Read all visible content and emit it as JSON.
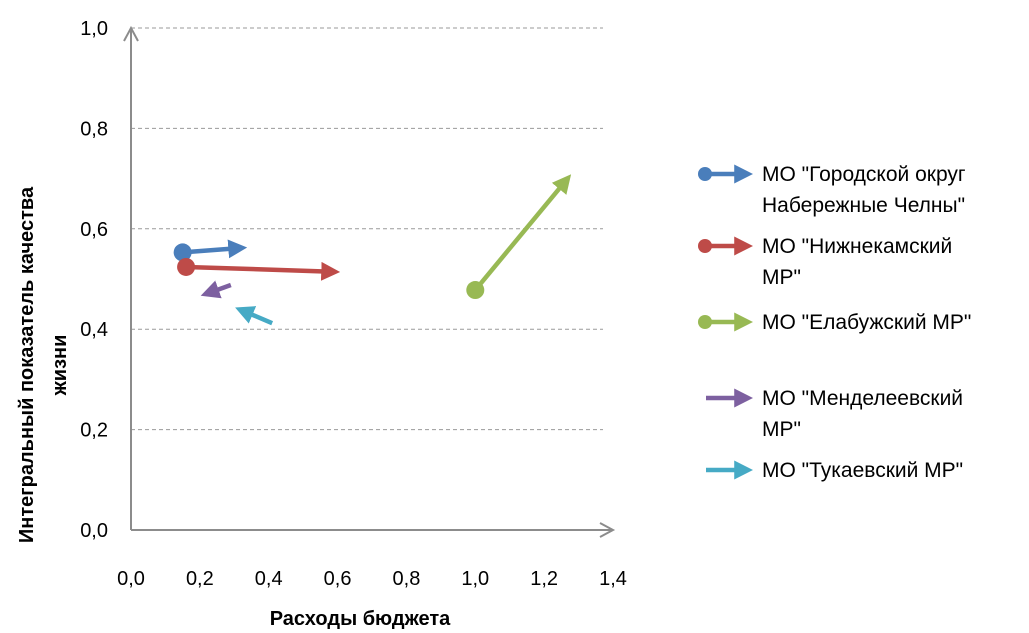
{
  "chart_data": {
    "type": "scatter",
    "xlabel": "Расходы бюджета",
    "ylabel_lines": [
      "Интегральный показатель качества",
      "жизни"
    ],
    "xlim": [
      0,
      1.4
    ],
    "ylim": [
      0,
      1.0
    ],
    "x_ticks": [
      "0,0",
      "0,2",
      "0,4",
      "0,6",
      "0,8",
      "1,0",
      "1,2",
      "1,4"
    ],
    "y_ticks": [
      "0,0",
      "0,2",
      "0,4",
      "0,6",
      "0,8",
      "1,0"
    ],
    "grid": "horizontal dashed",
    "legend_position": "right",
    "series": [
      {
        "name_lines": [
          "МО \"Городской округ",
          "Набережные Челны\""
        ],
        "color": "#4a7ebb",
        "start": [
          0.15,
          0.553
        ],
        "end": [
          0.34,
          0.563
        ],
        "marker": true
      },
      {
        "name_lines": [
          "МО \"Нижнекамский",
          "МР\""
        ],
        "color": "#be4b48",
        "start": [
          0.16,
          0.524
        ],
        "end": [
          0.61,
          0.514
        ],
        "marker": true
      },
      {
        "name_lines": [
          "МО \"Елабужский МР\""
        ],
        "color": "#98b954",
        "start": [
          1.0,
          0.478
        ],
        "end": [
          1.28,
          0.71
        ],
        "marker": true
      },
      {
        "name_lines": [
          "МО \"Менделеевский",
          "МР\""
        ],
        "color": "#7d60a0",
        "start": [
          0.29,
          0.488
        ],
        "end": [
          0.2,
          0.466
        ],
        "marker": false
      },
      {
        "name_lines": [
          "МО \"Тукаевский МР\""
        ],
        "color": "#46aac5",
        "start": [
          0.41,
          0.412
        ],
        "end": [
          0.3,
          0.444
        ],
        "marker": false
      }
    ]
  }
}
